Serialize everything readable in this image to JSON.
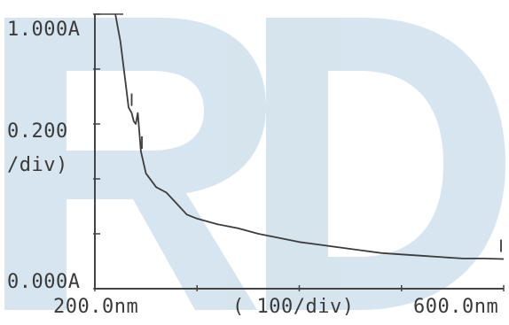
{
  "chart_data": {
    "type": "line",
    "x_unit": "nm",
    "y_unit": "A",
    "xlim": [
      200.0,
      600.0
    ],
    "ylim": [
      0.0,
      1.0
    ],
    "x_divisions": 4,
    "y_divisions": 5,
    "grid": false,
    "axis_labels": {
      "y_max": "1.000A",
      "y_scale": "0.200",
      "y_scale_unit": "/div)",
      "y_min": "0.000A",
      "x_min": "200.0nm",
      "x_scale": "( 100/div)",
      "x_max": "600.0nm"
    },
    "series": [
      {
        "x": [
          220,
          225,
          230,
          233,
          236,
          238,
          240,
          242,
          245,
          250,
          260,
          270,
          280,
          290,
          300,
          320,
          340,
          360,
          380,
          400,
          420,
          440,
          460,
          480,
          500,
          520,
          540,
          560,
          580,
          600
        ],
        "y": [
          1.0,
          0.9,
          0.75,
          0.66,
          0.64,
          0.61,
          0.6,
          0.64,
          0.5,
          0.42,
          0.37,
          0.35,
          0.31,
          0.27,
          0.255,
          0.235,
          0.22,
          0.2,
          0.185,
          0.17,
          0.16,
          0.15,
          0.14,
          0.13,
          0.125,
          0.12,
          0.115,
          0.11,
          0.11,
          0.108
        ]
      }
    ],
    "markers_x": [
      236,
      246,
      600
    ]
  },
  "colors": {
    "trace": "#3c3c3c",
    "axes": "#444444",
    "text": "#3a3a3a",
    "watermark": "#cfe0ec"
  }
}
